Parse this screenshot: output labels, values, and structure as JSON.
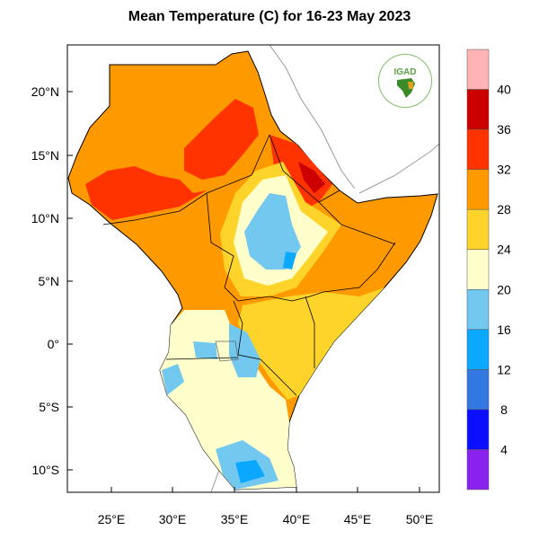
{
  "title": "Mean Temperature (C) for 16-23 May 2023",
  "map": {
    "lon_range": [
      21.5,
      51.6
    ],
    "lat_range": [
      -11.8,
      23.7
    ],
    "lon_ticks": [
      "25°E",
      "30°E",
      "35°E",
      "40°E",
      "45°E",
      "50°E"
    ],
    "lat_ticks": [
      "20°N",
      "15°N",
      "10°N",
      "5°N",
      "0°",
      "5°S",
      "10°S"
    ],
    "logo_text": "IGAD"
  },
  "colorbar": {
    "labels": [
      "40",
      "36",
      "32",
      "28",
      "24",
      "20",
      "16",
      "12",
      "8",
      "4"
    ],
    "colors": [
      "#ffb3b5",
      "#cc0000",
      "#ff3300",
      "#ff9900",
      "#ffd42a",
      "#ffffcc",
      "#73c8f0",
      "#0aa8ff",
      "#3377e0",
      "#0a10ff",
      "#8a22ee"
    ]
  }
}
